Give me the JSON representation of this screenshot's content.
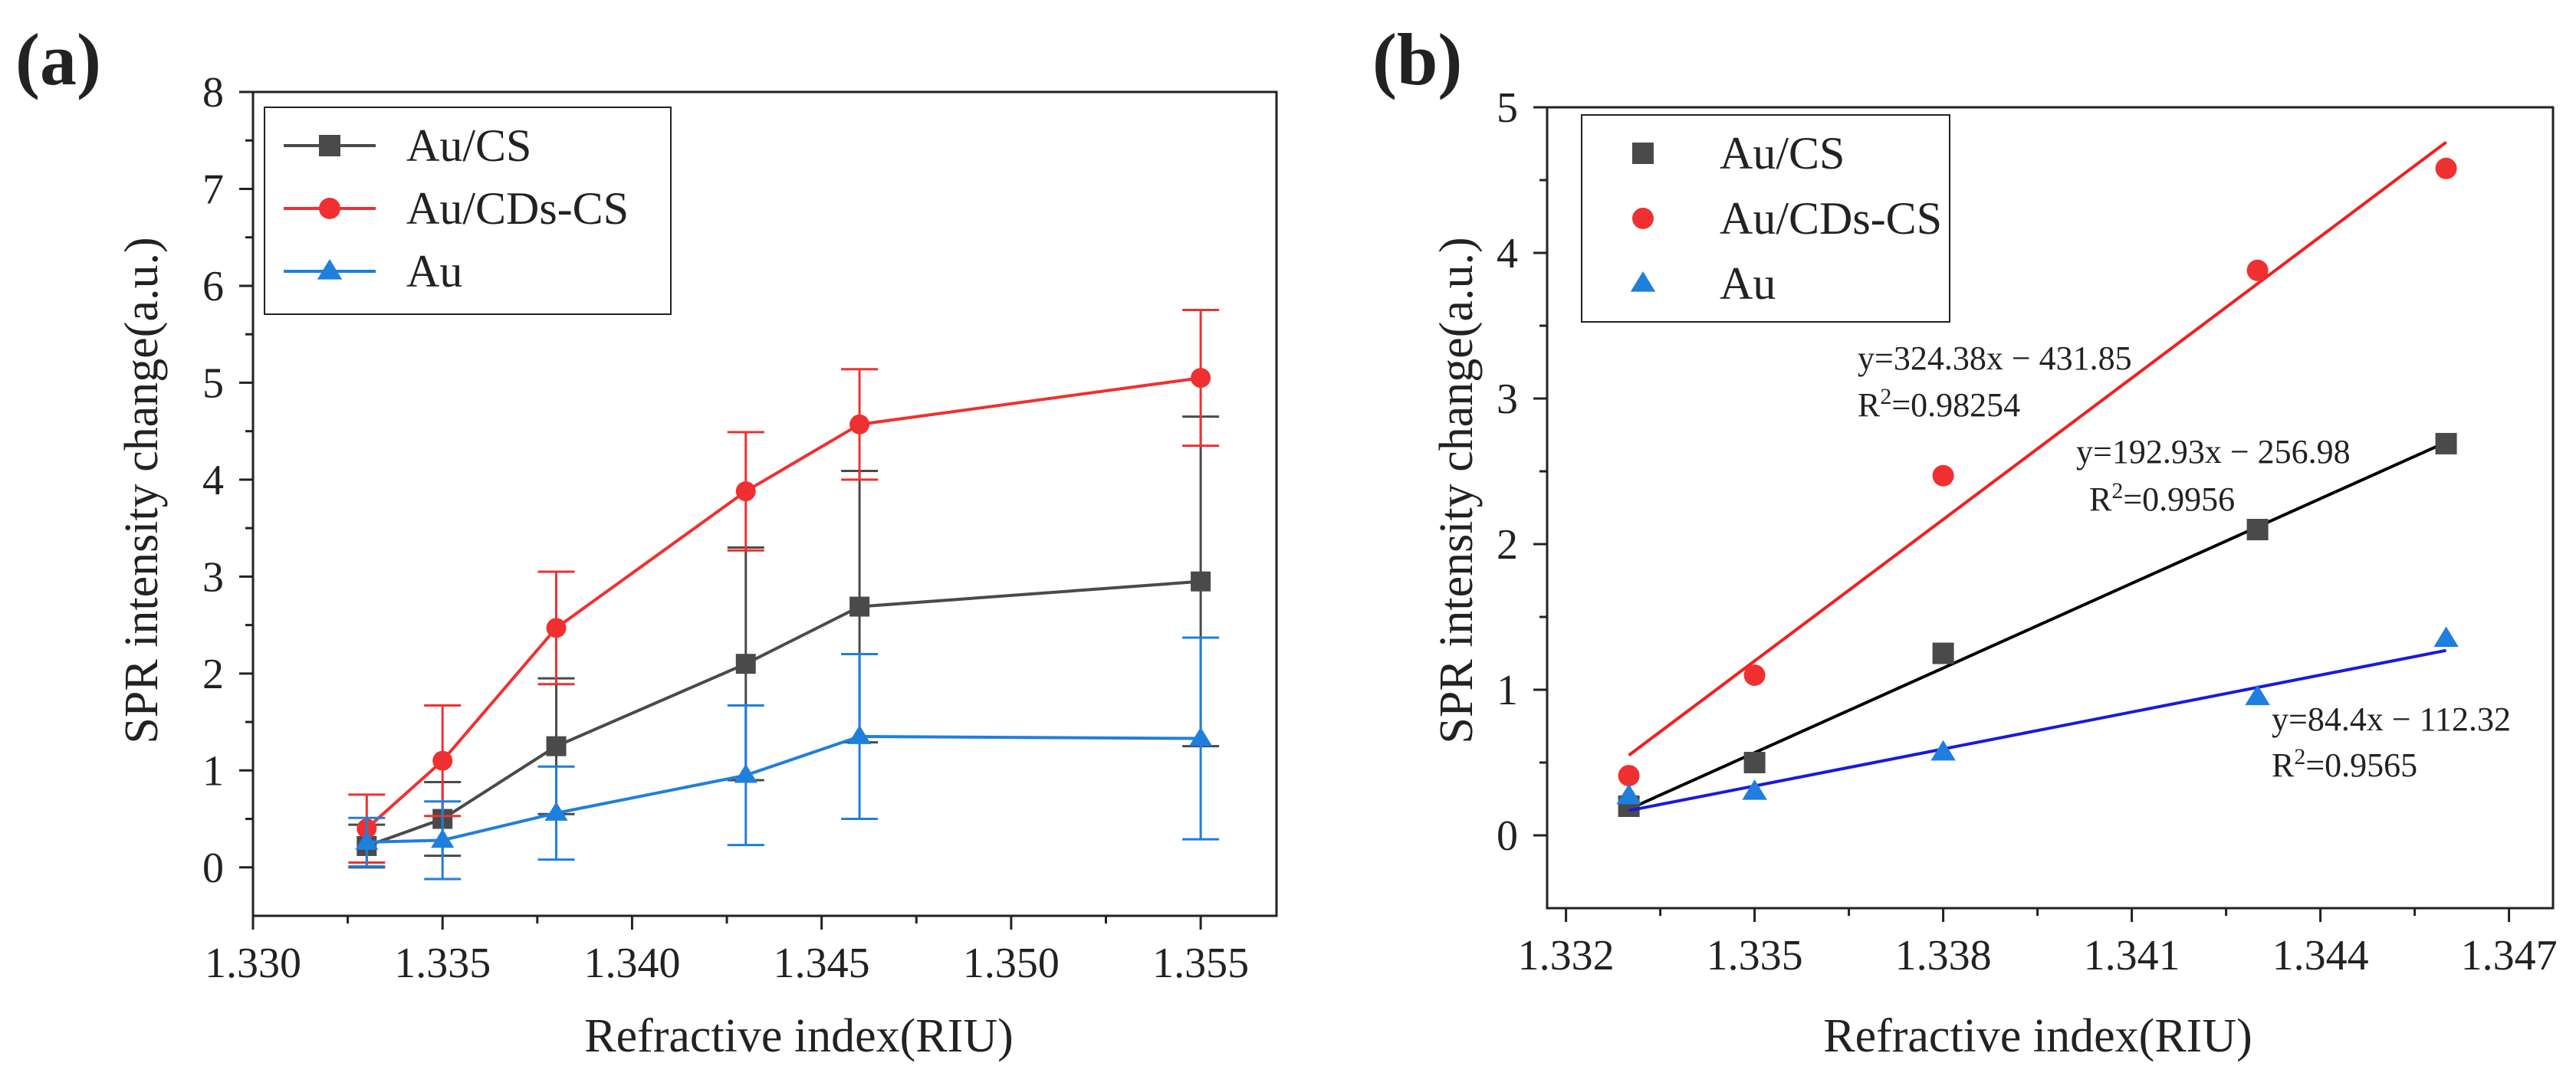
{
  "chart_data": [
    {
      "panel_label": "(a)",
      "type": "line",
      "xlabel": "Refractive index(RIU)",
      "ylabel": "SPR intensity change(a.u.)",
      "xlim": [
        1.33,
        1.357
      ],
      "ylim": [
        -0.5,
        8
      ],
      "xticks": [
        1.33,
        1.335,
        1.34,
        1.345,
        1.35,
        1.355
      ],
      "xtick_labels": [
        "1.330",
        "1.335",
        "1.340",
        "1.345",
        "1.350",
        "1.355"
      ],
      "yticks": [
        0,
        1,
        2,
        3,
        4,
        5,
        6,
        7,
        8
      ],
      "ytick_labels": [
        "0",
        "1",
        "2",
        "3",
        "4",
        "5",
        "6",
        "7",
        "8"
      ],
      "grid": false,
      "legend": "top-left",
      "series": [
        {
          "name": "Au/CS",
          "color": "#4a4a4a",
          "marker": "square",
          "x": [
            1.333,
            1.335,
            1.338,
            1.343,
            1.346,
            1.355
          ],
          "y": [
            0.22,
            0.5,
            1.25,
            2.1,
            2.69,
            2.95
          ],
          "err": [
            0.22,
            0.38,
            0.7,
            1.2,
            1.4,
            1.7
          ]
        },
        {
          "name": "Au/CDs-CS",
          "color": "#f03030",
          "marker": "circle",
          "x": [
            1.333,
            1.335,
            1.338,
            1.343,
            1.346,
            1.355
          ],
          "y": [
            0.4,
            1.1,
            2.47,
            3.88,
            4.57,
            5.05
          ],
          "err": [
            0.35,
            0.57,
            0.58,
            0.61,
            0.57,
            0.7
          ]
        },
        {
          "name": "Au",
          "color": "#1f7fdc",
          "marker": "triangle",
          "x": [
            1.333,
            1.335,
            1.338,
            1.343,
            1.346,
            1.355
          ],
          "y": [
            0.26,
            0.28,
            0.56,
            0.95,
            1.35,
            1.33
          ],
          "err": [
            0.25,
            0.4,
            0.48,
            0.72,
            0.85,
            1.04
          ]
        }
      ]
    },
    {
      "panel_label": "(b)",
      "type": "scatter",
      "xlabel": "Refractive index(RIU)",
      "ylabel": "SPR intensity change(a.u.)",
      "xlim": [
        1.3317,
        1.3477
      ],
      "ylim": [
        -0.5,
        5
      ],
      "xticks": [
        1.332,
        1.335,
        1.338,
        1.341,
        1.344,
        1.347
      ],
      "xtick_labels": [
        "1.332",
        "1.335",
        "1.338",
        "1.341",
        "1.344",
        "1.347"
      ],
      "yticks": [
        0,
        1,
        2,
        3,
        4,
        5
      ],
      "ytick_labels": [
        "0",
        "1",
        "2",
        "3",
        "4",
        "5"
      ],
      "grid": false,
      "legend": "top-left",
      "series": [
        {
          "name": "Au/CS",
          "color": "#4a4a4a",
          "marker": "square",
          "fit_color": "#000000",
          "x": [
            1.333,
            1.335,
            1.338,
            1.343,
            1.346
          ],
          "y": [
            0.2,
            0.5,
            1.25,
            2.1,
            2.69
          ],
          "fit": {
            "x": [
              1.333,
              1.346
            ],
            "y": [
              0.18,
              2.7
            ]
          }
        },
        {
          "name": "Au/CDs-CS",
          "color": "#f03030",
          "marker": "circle",
          "fit_color": "#f02020",
          "x": [
            1.333,
            1.335,
            1.338,
            1.343,
            1.346
          ],
          "y": [
            0.41,
            1.1,
            2.47,
            3.88,
            4.58
          ],
          "fit": {
            "x": [
              1.333,
              1.346
            ],
            "y": [
              0.55,
              4.76
            ]
          }
        },
        {
          "name": "Au",
          "color": "#1f7fdc",
          "marker": "triangle",
          "fit_color": "#1a1adc",
          "x": [
            1.333,
            1.335,
            1.338,
            1.343,
            1.346
          ],
          "y": [
            0.27,
            0.3,
            0.57,
            0.95,
            1.35
          ],
          "fit": {
            "x": [
              1.333,
              1.346
            ],
            "y": [
              0.17,
              1.27
            ]
          }
        }
      ],
      "annotations": [
        {
          "name": "eq-au-cds-cs",
          "eq": "y=324.38x − 431.85",
          "r2_prefix": "R",
          "r2_exp": "2",
          "r2_value": "=0.98254"
        },
        {
          "name": "eq-au-cs",
          "eq": "y=192.93x − 256.98",
          "r2_prefix": "R",
          "r2_exp": "2",
          "r2_value": "=0.9956"
        },
        {
          "name": "eq-au",
          "eq": "y=84.4x − 112.32",
          "r2_prefix": "R",
          "r2_exp": "2",
          "r2_value": "=0.9565"
        }
      ]
    }
  ]
}
